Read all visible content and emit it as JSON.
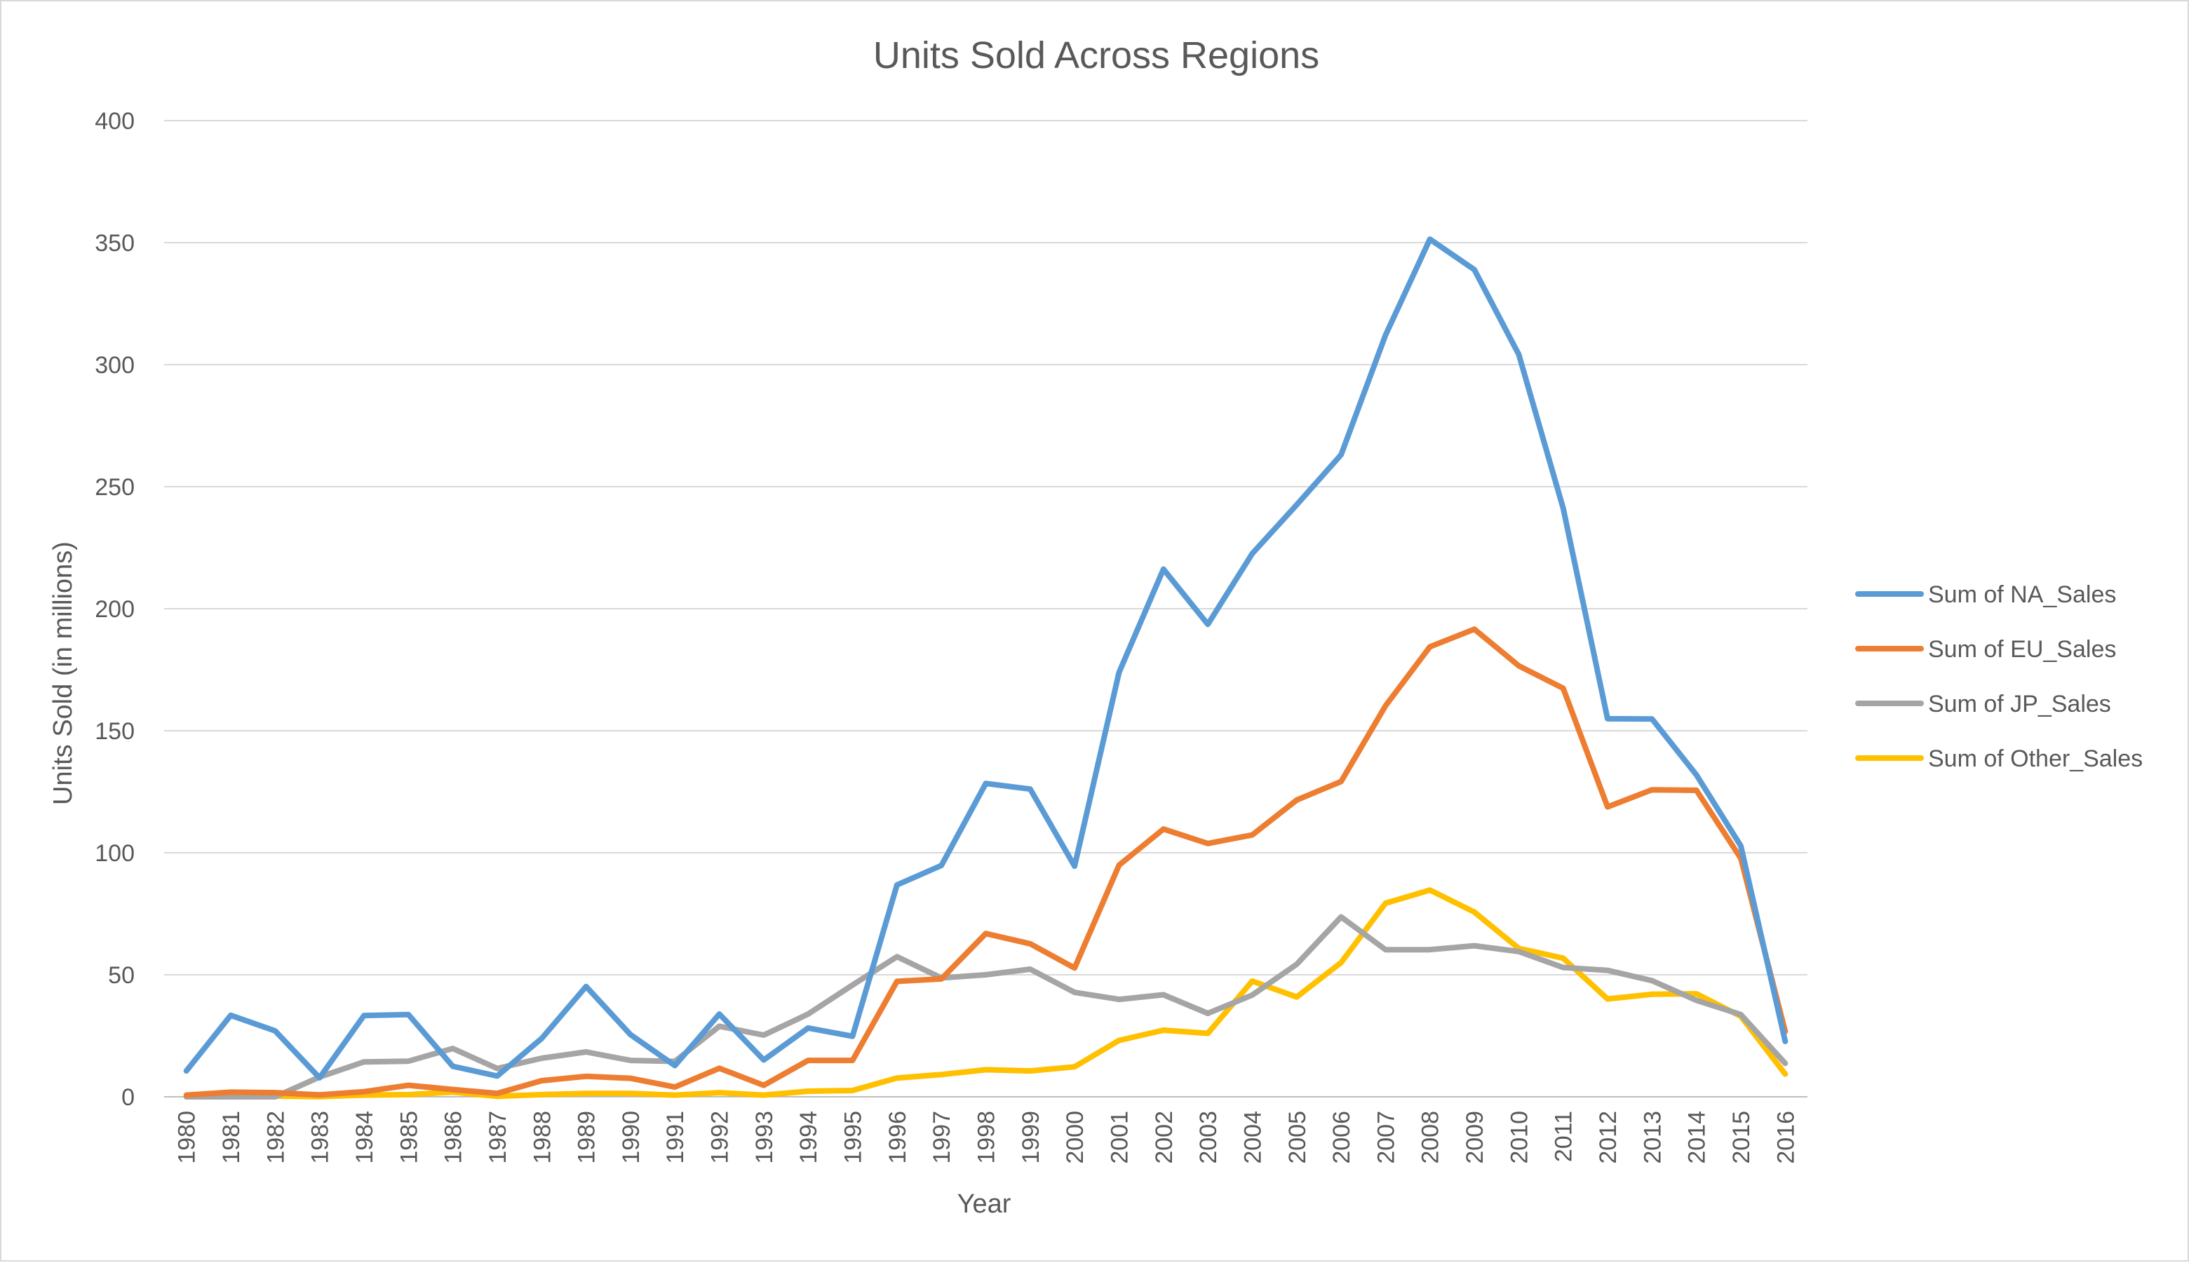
{
  "chart_data": {
    "type": "line",
    "title": "Units Sold Across Regions",
    "xlabel": "Year",
    "ylabel": "Units Sold (in millions)",
    "ylim": [
      0,
      400
    ],
    "yticks": [
      "0",
      "50",
      "100",
      "150",
      "200",
      "250",
      "300",
      "350",
      "400"
    ],
    "categories": [
      "1980",
      "1981",
      "1982",
      "1983",
      "1984",
      "1985",
      "1986",
      "1987",
      "1988",
      "1989",
      "1990",
      "1991",
      "1992",
      "1993",
      "1994",
      "1995",
      "1996",
      "1997",
      "1998",
      "1999",
      "2000",
      "2001",
      "2002",
      "2003",
      "2004",
      "2005",
      "2006",
      "2007",
      "2008",
      "2009",
      "2010",
      "2011",
      "2012",
      "2013",
      "2014",
      "2015",
      "2016"
    ],
    "grid": "horizontal",
    "legend_position": "right",
    "series": [
      {
        "name": "Sum of NA_Sales",
        "color": "#5b9bd5",
        "values": [
          10.6,
          33.4,
          27,
          7.8,
          33.3,
          33.7,
          12.5,
          8.5,
          23.9,
          45.2,
          25.5,
          12.8,
          33.9,
          15.1,
          28.2,
          24.8,
          86.8,
          94.8,
          128.4,
          126.1,
          94.5,
          173.9,
          216.2,
          193.6,
          222.6,
          242.6,
          263.1,
          312.1,
          351.4,
          338.9,
          304.2,
          241.2,
          154.9,
          154.8,
          131.9,
          102.8,
          22.7
        ]
      },
      {
        "name": "Sum of EU_Sales",
        "color": "#ed7d31",
        "values": [
          0.7,
          1.9,
          1.7,
          0.8,
          2.1,
          4.7,
          3,
          1.4,
          6.6,
          8.4,
          7.6,
          4,
          11.7,
          4.7,
          14.9,
          14.9,
          47.3,
          48.3,
          66.9,
          62.7,
          52.8,
          94.9,
          109.7,
          103.8,
          107.3,
          121.6,
          129.2,
          160.2,
          184.4,
          191.6,
          176.6,
          167.4,
          118.8,
          125.8,
          125.6,
          97.7,
          26.8
        ]
      },
      {
        "name": "Sum of JP_Sales",
        "color": "#a5a5a5",
        "values": [
          0,
          0,
          0,
          8.1,
          14.3,
          14.6,
          19.8,
          11.6,
          15.8,
          18.4,
          14.9,
          14.5,
          28.9,
          25.3,
          33.9,
          45.8,
          57.4,
          48.7,
          50.0,
          52.3,
          42.8,
          39.9,
          41.8,
          34.2,
          41.7,
          54.3,
          73.7,
          60.3,
          60.3,
          61.9,
          59.5,
          53.0,
          51.8,
          47.6,
          39.5,
          33.7,
          13.7
        ]
      },
      {
        "name": "Sum of Other_Sales",
        "color": "#ffc000",
        "values": [
          0.1,
          0.3,
          0.3,
          0.1,
          0.7,
          0.9,
          1.9,
          0.2,
          0.9,
          1.4,
          1.4,
          0.7,
          1.7,
          0.7,
          2.3,
          2.6,
          7.7,
          9.1,
          11.1,
          10.6,
          12.3,
          23.1,
          27.3,
          26.0,
          47.4,
          40.9,
          55.0,
          79.3,
          84.7,
          75.7,
          60.8,
          56.8,
          40.1,
          42.0,
          42.2,
          33.0,
          9.3
        ]
      }
    ]
  }
}
